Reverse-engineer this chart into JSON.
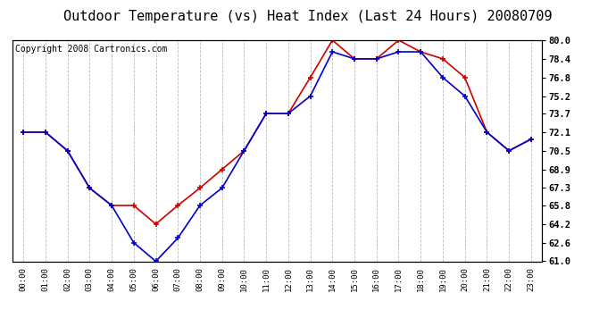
{
  "title": "Outdoor Temperature (vs) Heat Index (Last 24 Hours) 20080709",
  "copyright": "Copyright 2008 Cartronics.com",
  "hours": [
    "00:00",
    "01:00",
    "02:00",
    "03:00",
    "04:00",
    "05:00",
    "06:00",
    "07:00",
    "08:00",
    "09:00",
    "10:00",
    "11:00",
    "12:00",
    "13:00",
    "14:00",
    "15:00",
    "16:00",
    "17:00",
    "18:00",
    "19:00",
    "20:00",
    "21:00",
    "22:00",
    "23:00"
  ],
  "temp": [
    72.1,
    72.1,
    70.5,
    67.3,
    65.8,
    65.8,
    64.2,
    65.8,
    67.3,
    68.9,
    70.5,
    73.7,
    73.7,
    76.8,
    80.0,
    78.4,
    78.4,
    80.0,
    79.0,
    78.4,
    76.8,
    72.1,
    70.5,
    71.5
  ],
  "heat_index": [
    72.1,
    72.1,
    70.5,
    67.3,
    65.8,
    62.6,
    61.0,
    63.0,
    65.8,
    67.3,
    70.5,
    73.7,
    73.7,
    75.2,
    79.0,
    78.4,
    78.4,
    79.0,
    79.0,
    76.8,
    75.2,
    72.1,
    70.5,
    71.5
  ],
  "temp_color": "#cc0000",
  "heat_index_color": "#0000cc",
  "background_color": "#ffffff",
  "grid_color": "#bbbbbb",
  "ylim_min": 61.0,
  "ylim_max": 80.0,
  "yticks": [
    61.0,
    62.6,
    64.2,
    65.8,
    67.3,
    68.9,
    70.5,
    72.1,
    73.7,
    75.2,
    76.8,
    78.4,
    80.0
  ],
  "title_fontsize": 11,
  "copyright_fontsize": 7,
  "marker": "+",
  "marker_size": 5,
  "linewidth": 1.2
}
